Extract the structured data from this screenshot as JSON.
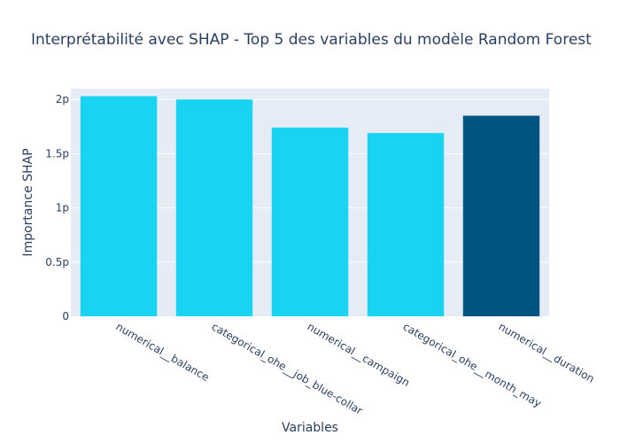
{
  "chart_data": {
    "type": "bar",
    "title": "Interprétabilité avec SHAP - Top 5 des variables du modèle Random Forest",
    "xlabel": "Variables",
    "ylabel": "Importance SHAP",
    "categories": [
      "numerical__balance",
      "categorical_ohe__job_blue-collar",
      "numerical__campaign",
      "categorical_ohe__month_may",
      "numerical__duration"
    ],
    "values": [
      2.03,
      2.0,
      1.74,
      1.69,
      1.85
    ],
    "colors": [
      "#19d3f3",
      "#19d3f3",
      "#19d3f3",
      "#19d3f3",
      "#005580"
    ],
    "ylim": [
      0,
      2.1
    ],
    "yticks": [
      {
        "value": 0,
        "label": "0"
      },
      {
        "value": 0.5,
        "label": "0.5p"
      },
      {
        "value": 1,
        "label": "1p"
      },
      {
        "value": 1.5,
        "label": "1.5p"
      },
      {
        "value": 2,
        "label": "2p"
      }
    ],
    "grid": true,
    "plot_background": "#e5ecf6"
  }
}
